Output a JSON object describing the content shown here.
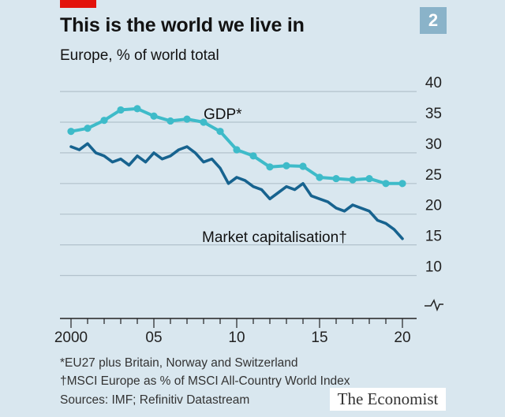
{
  "header": {
    "title": "This is the world we live in",
    "subtitle": "Europe, % of world total",
    "chart_number": "2"
  },
  "footnotes": {
    "note1": "*EU27 plus Britain, Norway and Switzerland",
    "note2": "†MSCI Europe as % of MSCI All-Country World Index",
    "sources": "Sources: IMF; Refinitiv Datastream"
  },
  "brand": "The Economist",
  "colors": {
    "gdp": "#3ebbc9",
    "market_cap": "#17638f",
    "background": "#d9e7ef",
    "gridline": "#b2c2cc",
    "brand_red": "#e3120b",
    "chart_number_bg": "#8ab3c9"
  },
  "chart_data": {
    "type": "line",
    "title": "This is the world we live in",
    "subtitle": "Europe, % of world total",
    "xlabel": "",
    "ylabel": "",
    "xlim": [
      2000,
      2020
    ],
    "ylim": [
      10,
      40
    ],
    "axis_break": true,
    "y_axis_position": "right",
    "y_ticks": [
      10,
      15,
      20,
      25,
      30,
      35,
      40
    ],
    "x_ticks": [
      {
        "value": 2000,
        "label": "2000"
      },
      {
        "value": 2005,
        "label": "05"
      },
      {
        "value": 2010,
        "label": "10"
      },
      {
        "value": 2015,
        "label": "15"
      },
      {
        "value": 2020,
        "label": "20"
      }
    ],
    "series": [
      {
        "name": "GDP*",
        "style": "line-with-markers",
        "x": [
          2000,
          2001,
          2002,
          2003,
          2004,
          2005,
          2006,
          2007,
          2008,
          2009,
          2010,
          2011,
          2012,
          2013,
          2014,
          2015,
          2016,
          2017,
          2018,
          2019,
          2020
        ],
        "values": [
          33.5,
          34.0,
          35.3,
          37.0,
          37.2,
          36.0,
          35.2,
          35.5,
          35.0,
          33.5,
          30.5,
          29.5,
          27.7,
          27.9,
          27.8,
          26.0,
          25.8,
          25.6,
          25.8,
          25.0,
          25.0
        ]
      },
      {
        "name": "Market capitalisation†",
        "style": "line",
        "x": [
          2000,
          2000.5,
          2001,
          2001.5,
          2002,
          2002.5,
          2003,
          2003.5,
          2004,
          2004.5,
          2005,
          2005.5,
          2006,
          2006.5,
          2007,
          2007.5,
          2008,
          2008.5,
          2009,
          2009.5,
          2010,
          2010.5,
          2011,
          2011.5,
          2012,
          2012.5,
          2013,
          2013.5,
          2014,
          2014.5,
          2015,
          2015.5,
          2016,
          2016.5,
          2017,
          2017.5,
          2018,
          2018.5,
          2019,
          2019.5,
          2020
        ],
        "values": [
          31.0,
          30.5,
          31.5,
          30.0,
          29.5,
          28.5,
          29.0,
          28.0,
          29.5,
          28.5,
          30.0,
          29.0,
          29.5,
          30.5,
          31.0,
          30.0,
          28.5,
          29.0,
          27.5,
          25.0,
          26.0,
          25.5,
          24.5,
          24.0,
          22.5,
          23.5,
          24.5,
          24.0,
          25.0,
          23.0,
          22.5,
          22.0,
          21.0,
          20.5,
          21.5,
          21.0,
          20.5,
          19.0,
          18.5,
          17.5,
          16.0
        ]
      }
    ],
    "annotations": [
      {
        "text": "GDP*",
        "series": "GDP*"
      },
      {
        "text": "Market capitalisation†",
        "series": "Market capitalisation†"
      }
    ]
  }
}
